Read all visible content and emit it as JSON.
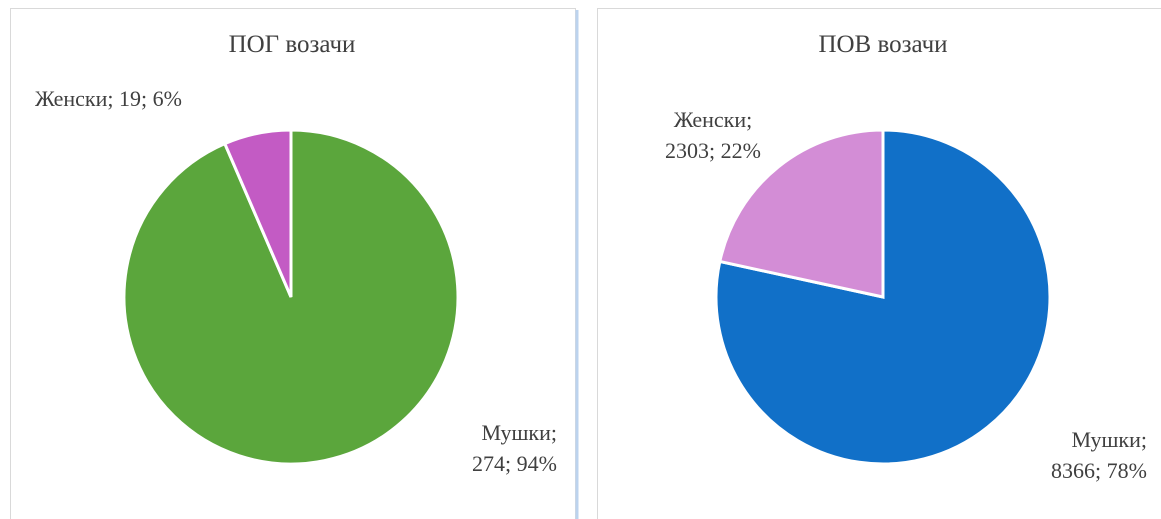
{
  "chart_data": [
    {
      "type": "pie",
      "title": "ПОГ возачи",
      "categories": [
        "Мушки",
        "Женски"
      ],
      "values": [
        274,
        19
      ],
      "value_labels": [
        [
          "Мушки;",
          "274; 94%"
        ],
        [
          "Женски; 19; 6%"
        ]
      ],
      "colors": [
        "#5ba63c",
        "#c35bc4"
      ]
    },
    {
      "type": "pie",
      "title": "ПОВ возачи",
      "categories": [
        "Мушки",
        "Женски"
      ],
      "values": [
        8366,
        2303
      ],
      "value_labels": [
        [
          "Мушки;",
          "8366; 78%"
        ],
        [
          "Женски;",
          "2303; 22%"
        ]
      ],
      "colors": [
        "#1170c8",
        "#d38dd6"
      ]
    }
  ]
}
